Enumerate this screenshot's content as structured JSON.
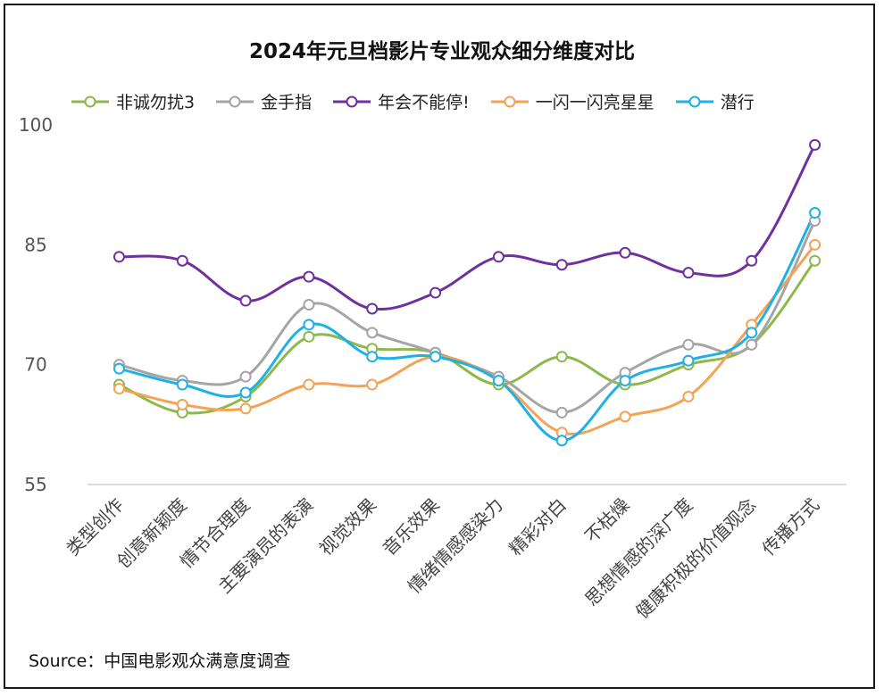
{
  "chart_data": {
    "type": "line",
    "title": "2024年元旦档影片专业观众细分维度对比",
    "categories": [
      "类型创作",
      "创意新颖度",
      "情节合理度",
      "主要演员的表演",
      "视觉效果",
      "音乐效果",
      "情绪情感感染力",
      "精彩对白",
      "不枯燥",
      "思想情感的深广度",
      "健康积极的价值观念",
      "传播方式"
    ],
    "series": [
      {
        "name": "非诚勿扰3",
        "color": "#8DB84A",
        "values": [
          67.5,
          64,
          66,
          73.5,
          72,
          71.5,
          67.5,
          71,
          67.5,
          70,
          72.5,
          83
        ]
      },
      {
        "name": "金手指",
        "color": "#A5A5A5",
        "values": [
          70,
          68,
          68.5,
          77.5,
          74,
          71.5,
          68.5,
          64,
          69,
          72.5,
          72.5,
          88
        ]
      },
      {
        "name": "年会不能停!",
        "color": "#7030A0",
        "values": [
          83.5,
          83,
          78,
          81,
          77,
          79,
          83.5,
          82.5,
          84,
          81.5,
          83,
          97.5
        ]
      },
      {
        "name": "一闪一闪亮星星",
        "color": "#F4A256",
        "values": [
          67,
          65,
          64.5,
          67.5,
          67.5,
          71,
          68,
          61.5,
          63.5,
          66,
          75,
          85
        ]
      },
      {
        "name": "潜行",
        "color": "#1FB0E6",
        "values": [
          69.5,
          67.5,
          66.5,
          75,
          71,
          71,
          68,
          60.5,
          68,
          70.5,
          74,
          89
        ]
      }
    ],
    "ylim": [
      55,
      100
    ],
    "yticks": [
      55,
      70,
      85,
      100
    ],
    "grid": false,
    "legend": "top"
  },
  "source": "Source：中国电影观众满意度调查"
}
